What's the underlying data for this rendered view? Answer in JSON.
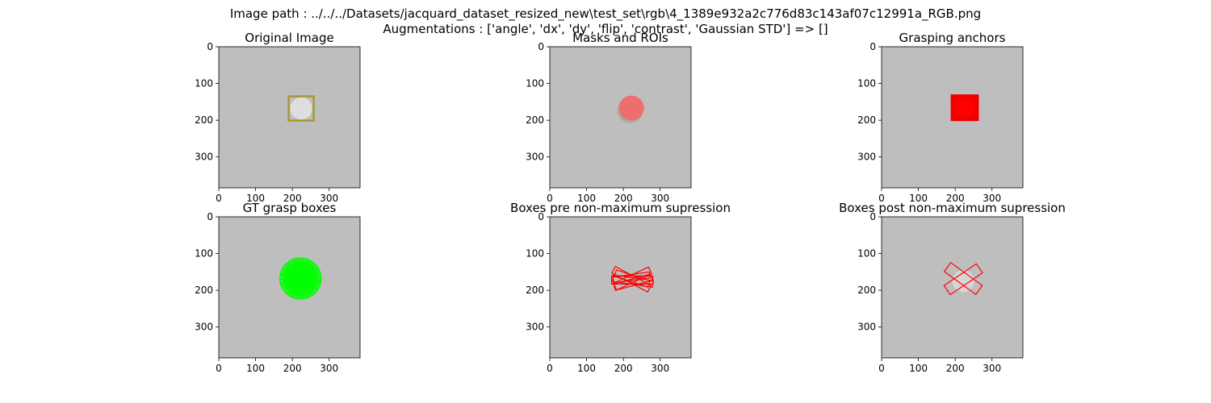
{
  "figure": {
    "suptitle_line1": "Image path : ../../../Datasets/jacquard_dataset_resized_new\\test_set\\rgb\\4_1389e932a2c776d83c143af07c12991a_RGB.png",
    "suptitle_line2": "Augmentations : ['angle', 'dx', 'dy', 'flip', 'contrast', 'Gaussian STD'] => []"
  },
  "chart_data": [
    {
      "type": "image",
      "title": "Original Image",
      "xlim": [
        0,
        384
      ],
      "ylim": [
        384,
        0
      ],
      "xticks": [
        0,
        100,
        200,
        300
      ],
      "yticks": [
        0,
        100,
        200,
        300
      ],
      "overlay": "roi-box",
      "rects": [
        {
          "x": [
            190,
            258
          ],
          "y": [
            135,
            201
          ]
        }
      ],
      "object": {
        "cx": 224,
        "cy": 168,
        "r": 30
      },
      "colors": {
        "background": "#bebebe",
        "overlay": "#a89a2e",
        "object": "#dedede"
      }
    },
    {
      "type": "image",
      "title": "Masks and ROIs",
      "xlim": [
        0,
        384
      ],
      "ylim": [
        384,
        0
      ],
      "xticks": [
        0,
        100,
        200,
        300
      ],
      "yticks": [
        0,
        100,
        200,
        300
      ],
      "overlay": "mask",
      "object": {
        "cx": 222,
        "cy": 167,
        "r": 34
      },
      "colors": {
        "background": "#bebebe",
        "overlay": "#ee6e6e"
      }
    },
    {
      "type": "image",
      "title": "Grasping anchors",
      "xlim": [
        0,
        384
      ],
      "ylim": [
        384,
        0
      ],
      "xticks": [
        0,
        100,
        200,
        300
      ],
      "yticks": [
        0,
        100,
        200,
        300
      ],
      "overlay": "anchors",
      "rects": [
        {
          "x": [
            188,
            264
          ],
          "y": [
            130,
            202
          ]
        }
      ],
      "colors": {
        "background": "#bebebe",
        "overlay": "#ff0000"
      }
    },
    {
      "type": "image",
      "title": "GT grasp boxes",
      "xlim": [
        0,
        384
      ],
      "ylim": [
        384,
        0
      ],
      "xticks": [
        0,
        100,
        200,
        300
      ],
      "yticks": [
        0,
        100,
        200,
        300
      ],
      "overlay": "gt-boxes",
      "object": {
        "cx": 222,
        "cy": 168,
        "r": 56
      },
      "colors": {
        "background": "#bebebe",
        "overlay": "#00ff00"
      }
    },
    {
      "type": "image",
      "title": "Boxes pre non-maximum supression",
      "xlim": [
        0,
        384
      ],
      "ylim": [
        384,
        0
      ],
      "xticks": [
        0,
        100,
        200,
        300
      ],
      "yticks": [
        0,
        100,
        200,
        300
      ],
      "overlay": "grasp-boxes",
      "boxes": [
        {
          "cx": 222,
          "cy": 170,
          "w": 110,
          "h": 20,
          "angle": 28
        },
        {
          "cx": 225,
          "cy": 168,
          "w": 105,
          "h": 20,
          "angle": -25
        },
        {
          "cx": 226,
          "cy": 175,
          "w": 110,
          "h": 18,
          "angle": 8
        },
        {
          "cx": 222,
          "cy": 165,
          "w": 100,
          "h": 16,
          "angle": -8
        },
        {
          "cx": 224,
          "cy": 172,
          "w": 112,
          "h": 22,
          "angle": 0
        },
        {
          "cx": 224,
          "cy": 168,
          "w": 96,
          "h": 18,
          "angle": 18
        },
        {
          "cx": 226,
          "cy": 178,
          "w": 104,
          "h": 18,
          "angle": -15
        }
      ],
      "colors": {
        "background": "#bebebe",
        "overlay": "#ff0000"
      }
    },
    {
      "type": "image",
      "title": "Boxes post non-maximum supression",
      "xlim": [
        0,
        384
      ],
      "ylim": [
        384,
        0
      ],
      "xticks": [
        0,
        100,
        200,
        300
      ],
      "yticks": [
        0,
        100,
        200,
        300
      ],
      "overlay": "grasp-boxes",
      "object": {
        "cx": 222,
        "cy": 175,
        "r": 30
      },
      "boxes": [
        {
          "cx": 222,
          "cy": 168,
          "w": 106,
          "h": 30,
          "angle": 36
        },
        {
          "cx": 222,
          "cy": 170,
          "w": 106,
          "h": 30,
          "angle": -34
        }
      ],
      "colors": {
        "background": "#bebebe",
        "overlay": "#ff0000",
        "object": "#d6d6d6"
      }
    }
  ]
}
